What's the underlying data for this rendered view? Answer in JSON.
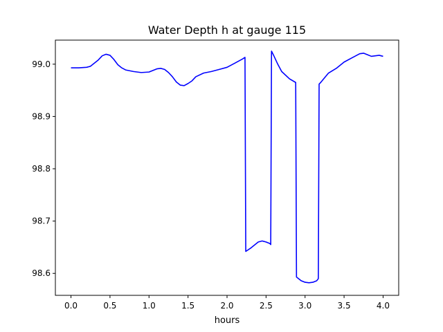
{
  "chart_data": {
    "type": "line",
    "title": "Water Depth h at gauge 115",
    "xlabel": "hours",
    "ylabel": "",
    "xlim": [
      -0.2,
      4.2
    ],
    "ylim": [
      98.558,
      99.046
    ],
    "xticks": [
      0.0,
      0.5,
      1.0,
      1.5,
      2.0,
      2.5,
      3.0,
      3.5,
      4.0
    ],
    "xtick_labels": [
      "0.0",
      "0.5",
      "1.0",
      "1.5",
      "2.0",
      "2.5",
      "3.0",
      "3.5",
      "4.0"
    ],
    "yticks": [
      98.6,
      98.7,
      98.8,
      98.9,
      99.0
    ],
    "ytick_labels": [
      "98.6",
      "98.7",
      "98.8",
      "98.9",
      "99.0"
    ],
    "grid": false,
    "legend": "none",
    "series": [
      {
        "color": "#0000ff",
        "x": [
          0.0,
          0.1,
          0.2,
          0.25,
          0.3,
          0.35,
          0.4,
          0.45,
          0.5,
          0.55,
          0.6,
          0.65,
          0.7,
          0.8,
          0.9,
          1.0,
          1.05,
          1.1,
          1.15,
          1.2,
          1.25,
          1.3,
          1.35,
          1.4,
          1.45,
          1.5,
          1.55,
          1.6,
          1.7,
          1.8,
          1.9,
          2.0,
          2.1,
          2.2,
          2.23,
          2.24,
          2.3,
          2.4,
          2.45,
          2.5,
          2.55,
          2.56,
          2.57,
          2.6,
          2.65,
          2.7,
          2.8,
          2.88,
          2.89,
          2.95,
          3.0,
          3.05,
          3.1,
          3.15,
          3.17,
          3.18,
          3.2,
          3.3,
          3.4,
          3.5,
          3.6,
          3.7,
          3.75,
          3.8,
          3.85,
          3.9,
          3.95,
          4.0
        ],
        "y": [
          98.993,
          98.993,
          98.994,
          98.996,
          99.002,
          99.008,
          99.016,
          99.019,
          99.017,
          99.009,
          98.999,
          98.993,
          98.989,
          98.986,
          98.984,
          98.985,
          98.988,
          98.991,
          98.992,
          98.99,
          98.984,
          98.976,
          98.966,
          98.96,
          98.959,
          98.963,
          98.968,
          98.976,
          98.983,
          98.986,
          98.99,
          98.994,
          99.002,
          99.01,
          99.013,
          98.642,
          98.648,
          98.66,
          98.662,
          98.66,
          98.657,
          98.655,
          99.025,
          99.016,
          99.0,
          98.986,
          98.972,
          98.965,
          98.593,
          98.586,
          98.583,
          98.582,
          98.583,
          98.586,
          98.59,
          98.962,
          98.965,
          98.983,
          98.992,
          99.004,
          99.012,
          99.02,
          99.021,
          99.018,
          99.015,
          99.016,
          99.017,
          99.015
        ]
      }
    ]
  }
}
